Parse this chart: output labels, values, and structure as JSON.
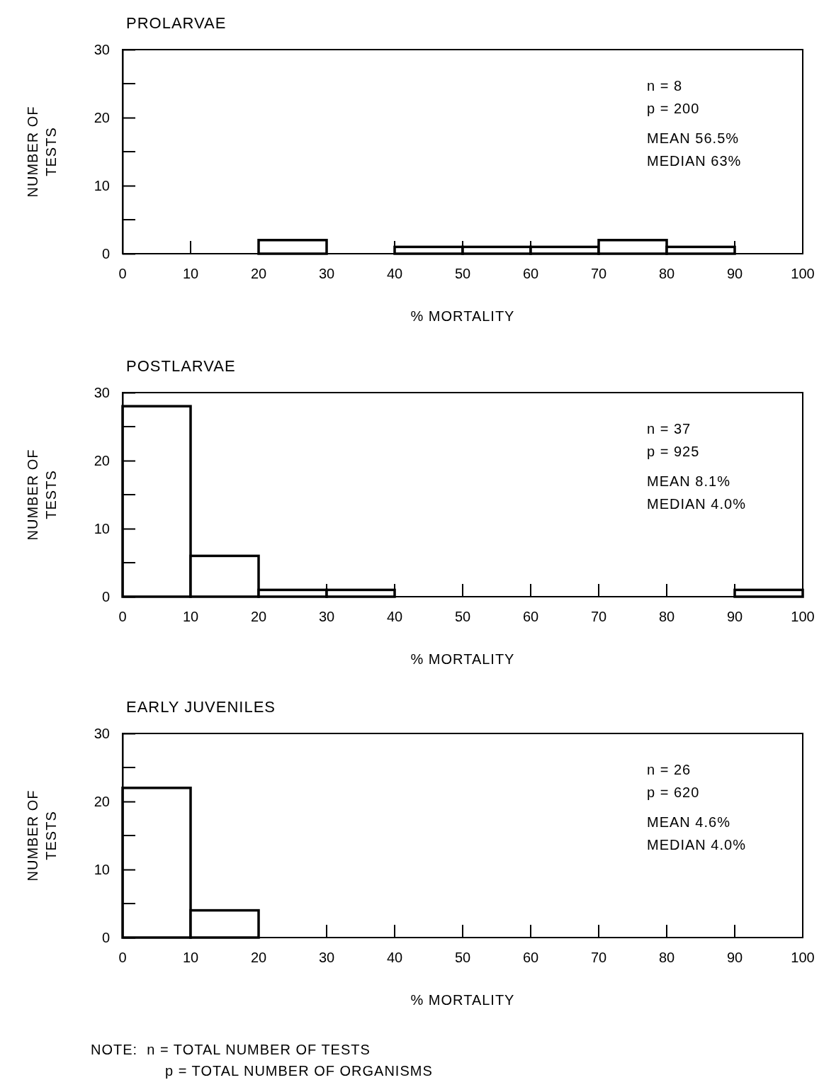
{
  "chart_data": [
    {
      "type": "histogram",
      "title": "PROLARVAE",
      "xlabel": "% MORTALITY",
      "ylabel": "NUMBER OF TESTS",
      "bins": [
        0,
        10,
        20,
        30,
        40,
        50,
        60,
        70,
        80,
        90,
        100
      ],
      "values": [
        0,
        0,
        2,
        0,
        1,
        1,
        1,
        2,
        1,
        0
      ],
      "color": "#000000",
      "xlim": [
        0,
        100
      ],
      "xticks": [
        0,
        10,
        20,
        30,
        40,
        50,
        60,
        70,
        80,
        90,
        100
      ],
      "ylim": [
        0,
        30
      ],
      "yticks": [
        0,
        10,
        20,
        30
      ],
      "annotations": [
        "n = 8",
        "p = 200",
        "MEAN 56.5%",
        "MEDIAN 63%"
      ]
    },
    {
      "type": "histogram",
      "title": "POSTLARVAE",
      "xlabel": "% MORTALITY",
      "ylabel": "NUMBER OF TESTS",
      "bins": [
        0,
        10,
        20,
        30,
        40,
        50,
        60,
        70,
        80,
        90,
        100
      ],
      "values": [
        28,
        6,
        1,
        1,
        0,
        0,
        0,
        0,
        0,
        1
      ],
      "color": "#000000",
      "xlim": [
        0,
        100
      ],
      "xticks": [
        0,
        10,
        20,
        30,
        40,
        50,
        60,
        70,
        80,
        90,
        100
      ],
      "ylim": [
        0,
        30
      ],
      "yticks": [
        0,
        10,
        20,
        30
      ],
      "annotations": [
        "n = 37",
        "p = 925",
        "MEAN 8.1%",
        "MEDIAN 4.0%"
      ]
    },
    {
      "type": "histogram",
      "title": "EARLY JUVENILES",
      "xlabel": "% MORTALITY",
      "ylabel": "NUMBER OF TESTS",
      "bins": [
        0,
        10,
        20,
        30,
        40,
        50,
        60,
        70,
        80,
        90,
        100
      ],
      "values": [
        22,
        4,
        0,
        0,
        0,
        0,
        0,
        0,
        0,
        0
      ],
      "color": "#000000",
      "xlim": [
        0,
        100
      ],
      "xticks": [
        0,
        10,
        20,
        30,
        40,
        50,
        60,
        70,
        80,
        90,
        100
      ],
      "ylim": [
        0,
        30
      ],
      "yticks": [
        0,
        10,
        20,
        30
      ],
      "annotations": [
        "n = 26",
        "p = 620",
        "MEAN 4.6%",
        "MEDIAN 4.0%",
        "NOTE:  n = TOTAL NUMBER OF TESTS",
        "p = TOTAL NUMBER OF ORGANISMS"
      ]
    }
  ]
}
